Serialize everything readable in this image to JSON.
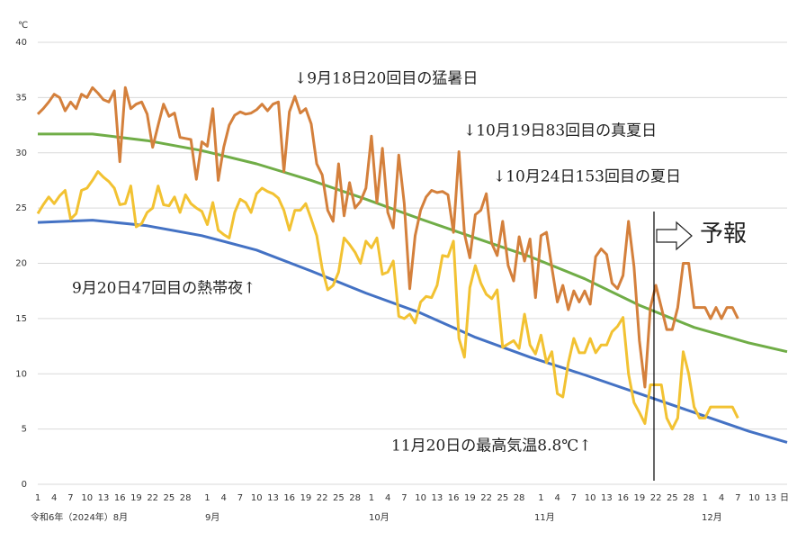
{
  "chart_data": {
    "type": "line",
    "y_unit": "℃",
    "x_unit": "日",
    "month_labels": [
      "令和6年（2024年）8月",
      "9月",
      "10月",
      "11月",
      "12月"
    ],
    "annotations": [
      "↓9月18日20回目の猛暑日",
      "↓10月19日83回目の真夏日",
      "↓10月24日153回目の夏日",
      "9月20日47回目の熱帯夜↑",
      "11月20日の最高気温8.8℃↑",
      "予報"
    ],
    "xlim": [
      0,
      137
    ],
    "ylim": [
      0,
      40
    ],
    "yticks": [
      0,
      5,
      10,
      15,
      20,
      25,
      30,
      35,
      40
    ],
    "grid": true,
    "xticks": [
      {
        "value": 0,
        "label": "1"
      },
      {
        "value": 3,
        "label": "4"
      },
      {
        "value": 6,
        "label": "7"
      },
      {
        "value": 9,
        "label": "10"
      },
      {
        "value": 12,
        "label": "13"
      },
      {
        "value": 15,
        "label": "16"
      },
      {
        "value": 18,
        "label": "19"
      },
      {
        "value": 21,
        "label": "22"
      },
      {
        "value": 24,
        "label": "25"
      },
      {
        "value": 27,
        "label": "28"
      },
      {
        "value": 31,
        "label": "1"
      },
      {
        "value": 34,
        "label": "4"
      },
      {
        "value": 37,
        "label": "7"
      },
      {
        "value": 40,
        "label": "10"
      },
      {
        "value": 43,
        "label": "13"
      },
      {
        "value": 46,
        "label": "16"
      },
      {
        "value": 49,
        "label": "19"
      },
      {
        "value": 52,
        "label": "22"
      },
      {
        "value": 55,
        "label": "25"
      },
      {
        "value": 58,
        "label": "28"
      },
      {
        "value": 61,
        "label": "1"
      },
      {
        "value": 64,
        "label": "4"
      },
      {
        "value": 67,
        "label": "7"
      },
      {
        "value": 70,
        "label": "10"
      },
      {
        "value": 73,
        "label": "13"
      },
      {
        "value": 76,
        "label": "16"
      },
      {
        "value": 79,
        "label": "19"
      },
      {
        "value": 82,
        "label": "22"
      },
      {
        "value": 85,
        "label": "25"
      },
      {
        "value": 88,
        "label": "28"
      },
      {
        "value": 92,
        "label": "1"
      },
      {
        "value": 95,
        "label": "4"
      },
      {
        "value": 98,
        "label": "7"
      },
      {
        "value": 101,
        "label": "10"
      },
      {
        "value": 104,
        "label": "13"
      },
      {
        "value": 107,
        "label": "16"
      },
      {
        "value": 110,
        "label": "19"
      },
      {
        "value": 113,
        "label": "22"
      },
      {
        "value": 116,
        "label": "25"
      },
      {
        "value": 119,
        "label": "28"
      },
      {
        "value": 122,
        "label": "1"
      },
      {
        "value": 125,
        "label": "4"
      },
      {
        "value": 128,
        "label": "7"
      },
      {
        "value": 131,
        "label": "10"
      },
      {
        "value": 134,
        "label": "13"
      }
    ],
    "series": [
      {
        "color": "#70ad47",
        "x": [
          0,
          10,
          20,
          30,
          40,
          50,
          60,
          70,
          80,
          90,
          100,
          110,
          120,
          130,
          137
        ],
        "values": [
          31.7,
          31.7,
          31.1,
          30.2,
          29,
          27.5,
          25.8,
          24,
          22.3,
          20.6,
          18.6,
          16.2,
          14.2,
          12.8,
          12
        ]
      },
      {
        "color": "#4472c4",
        "x": [
          0,
          10,
          20,
          30,
          40,
          50,
          60,
          70,
          80,
          90,
          100,
          110,
          120,
          130,
          137
        ],
        "values": [
          23.7,
          23.9,
          23.4,
          22.5,
          21.2,
          19.3,
          17.3,
          15.5,
          13.3,
          11.5,
          9.9,
          8.2,
          6.5,
          4.8,
          3.8
        ]
      },
      {
        "color": "#d4803c",
        "x": [
          0,
          1,
          2,
          3,
          4,
          5,
          6,
          7,
          8,
          9,
          10,
          11,
          12,
          13,
          14,
          15,
          16,
          17,
          18,
          19,
          20,
          21,
          22,
          23,
          24,
          25,
          26,
          27,
          28,
          29,
          30,
          31,
          32,
          33,
          34,
          35,
          36,
          37,
          38,
          39,
          40,
          41,
          42,
          43,
          44,
          45,
          46,
          47,
          48,
          49,
          50,
          51,
          52,
          53,
          54,
          55,
          56,
          57,
          58,
          59,
          60,
          61,
          62,
          63,
          64,
          65,
          66,
          67,
          68,
          69,
          70,
          71,
          72,
          73,
          74,
          75,
          76,
          77,
          78,
          79,
          80,
          81,
          82,
          83,
          84,
          85,
          86,
          87,
          88,
          89,
          90,
          91,
          92,
          93,
          94,
          95,
          96,
          97,
          98,
          99,
          100,
          101,
          102,
          103,
          104,
          105,
          106,
          107,
          108,
          109,
          110,
          111,
          112,
          113,
          114,
          115,
          116,
          117,
          118,
          119,
          120,
          121,
          122,
          123,
          124,
          125,
          126,
          127,
          128
        ],
        "values": [
          33.5,
          34,
          34.6,
          35.3,
          35,
          33.8,
          34.6,
          34,
          35.3,
          35,
          35.9,
          35.4,
          34.8,
          34.6,
          35.6,
          29.2,
          35.9,
          34,
          34.4,
          34.6,
          33.5,
          30.5,
          32.5,
          34.4,
          33.3,
          33.6,
          31.4,
          31.3,
          31.2,
          27.6,
          31,
          30.6,
          34,
          27.5,
          30.5,
          32.5,
          33.4,
          33.7,
          33.5,
          33.6,
          33.9,
          34.4,
          33.8,
          34.4,
          34.6,
          28.3,
          33.7,
          35.1,
          33.6,
          34,
          32.6,
          29,
          28,
          24.8,
          23.8,
          29,
          24.3,
          27.3,
          25,
          25.6,
          26.8,
          31.5,
          25.5,
          30.4,
          24.6,
          23.2,
          29.8,
          25.4,
          17.7,
          22.5,
          24.8,
          26,
          26.6,
          26.4,
          26.5,
          26.2,
          22.8,
          30.1,
          22.7,
          20.5,
          24.4,
          24.8,
          26.3,
          21.8,
          20.7,
          23.8,
          19.8,
          18.4,
          22.4,
          20.2,
          22.2,
          16.9,
          22.5,
          22.8,
          19.6,
          16.5,
          18,
          15.8,
          17.5,
          16.5,
          17.5,
          16.3,
          20.6,
          21.3,
          20.8,
          18.2,
          17.7,
          18.9,
          23.8,
          19.7,
          13,
          8.8,
          16,
          18,
          16,
          14,
          14,
          16,
          20,
          20,
          16,
          16,
          16,
          15,
          16,
          15,
          16,
          16,
          15
        ]
      },
      {
        "color": "#f2c232",
        "x": [
          0,
          1,
          2,
          3,
          4,
          5,
          6,
          7,
          8,
          9,
          10,
          11,
          12,
          13,
          14,
          15,
          16,
          17,
          18,
          19,
          20,
          21,
          22,
          23,
          24,
          25,
          26,
          27,
          28,
          29,
          30,
          31,
          32,
          33,
          34,
          35,
          36,
          37,
          38,
          39,
          40,
          41,
          42,
          43,
          44,
          45,
          46,
          47,
          48,
          49,
          50,
          51,
          52,
          53,
          54,
          55,
          56,
          57,
          58,
          59,
          60,
          61,
          62,
          63,
          64,
          65,
          66,
          67,
          68,
          69,
          70,
          71,
          72,
          73,
          74,
          75,
          76,
          77,
          78,
          79,
          80,
          81,
          82,
          83,
          84,
          85,
          86,
          87,
          88,
          89,
          90,
          91,
          92,
          93,
          94,
          95,
          96,
          97,
          98,
          99,
          100,
          101,
          102,
          103,
          104,
          105,
          106,
          107,
          108,
          109,
          110,
          111,
          112,
          113,
          114,
          115,
          116,
          117,
          118,
          119,
          120,
          121,
          122,
          123,
          124,
          125,
          126,
          127,
          128
        ],
        "values": [
          24.5,
          25.3,
          26,
          25.4,
          26.1,
          26.6,
          24,
          24.5,
          26.6,
          26.8,
          27.5,
          28.3,
          27.8,
          27.4,
          26.8,
          25.3,
          25.4,
          27,
          23.3,
          23.6,
          24.6,
          25,
          27,
          25.3,
          25.2,
          26,
          24.6,
          26.2,
          25.4,
          25,
          24.7,
          23.5,
          25.5,
          23,
          22.6,
          22.3,
          24.6,
          25.8,
          25.5,
          24.6,
          26.3,
          26.8,
          26.5,
          26.3,
          25.9,
          24.8,
          23,
          24.8,
          24.8,
          25.4,
          24,
          22.5,
          19.5,
          17.6,
          18,
          19.2,
          22.3,
          21.7,
          21,
          20,
          22,
          21.4,
          22.3,
          19,
          19.2,
          20.2,
          15.2,
          15,
          15.4,
          14.6,
          16.5,
          17,
          16.9,
          18,
          20.7,
          20.6,
          22,
          13.2,
          11.5,
          17.8,
          19.8,
          18.2,
          17.2,
          16.8,
          17.6,
          12.4,
          12.7,
          13,
          12.3,
          15.4,
          12.6,
          11.8,
          13.5,
          11,
          12,
          8.2,
          7.9,
          11,
          13.2,
          11.9,
          11.9,
          13.2,
          11.9,
          12.6,
          12.6,
          13.8,
          14.3,
          15.1,
          10,
          7.4,
          6.5,
          5.5,
          9,
          9,
          9,
          6,
          5,
          6,
          12,
          10,
          7,
          6,
          6,
          7,
          7,
          7,
          7,
          7,
          6
        ]
      }
    ]
  }
}
